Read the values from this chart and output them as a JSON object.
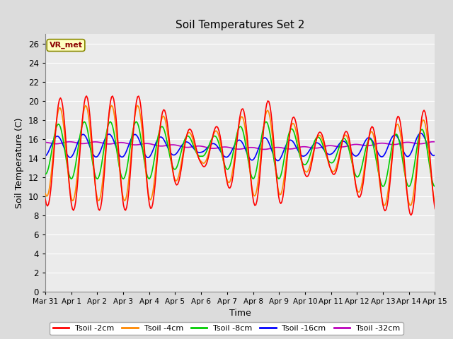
{
  "title": "Soil Temperatures Set 2",
  "xlabel": "Time",
  "ylabel": "Soil Temperature (C)",
  "annotation": "VR_met",
  "ylim": [
    0,
    27
  ],
  "yticks": [
    0,
    2,
    4,
    6,
    8,
    10,
    12,
    14,
    16,
    18,
    20,
    22,
    24,
    26
  ],
  "x_labels": [
    "Mar 31",
    "Apr 1",
    "Apr 2",
    "Apr 3",
    "Apr 4",
    "Apr 5",
    "Apr 6",
    "Apr 7",
    "Apr 8",
    "Apr 9",
    "Apr 10",
    "Apr 11",
    "Apr 12",
    "Apr 13",
    "Apr 14",
    "Apr 15"
  ],
  "colors": {
    "Tsoil -2cm": "#ff0000",
    "Tsoil -4cm": "#ff8800",
    "Tsoil -8cm": "#00cc00",
    "Tsoil -16cm": "#0000ff",
    "Tsoil -32cm": "#bb00bb"
  },
  "bg_color": "#dcdcdc",
  "plot_bg": "#ebebeb",
  "grid_color": "#ffffff"
}
